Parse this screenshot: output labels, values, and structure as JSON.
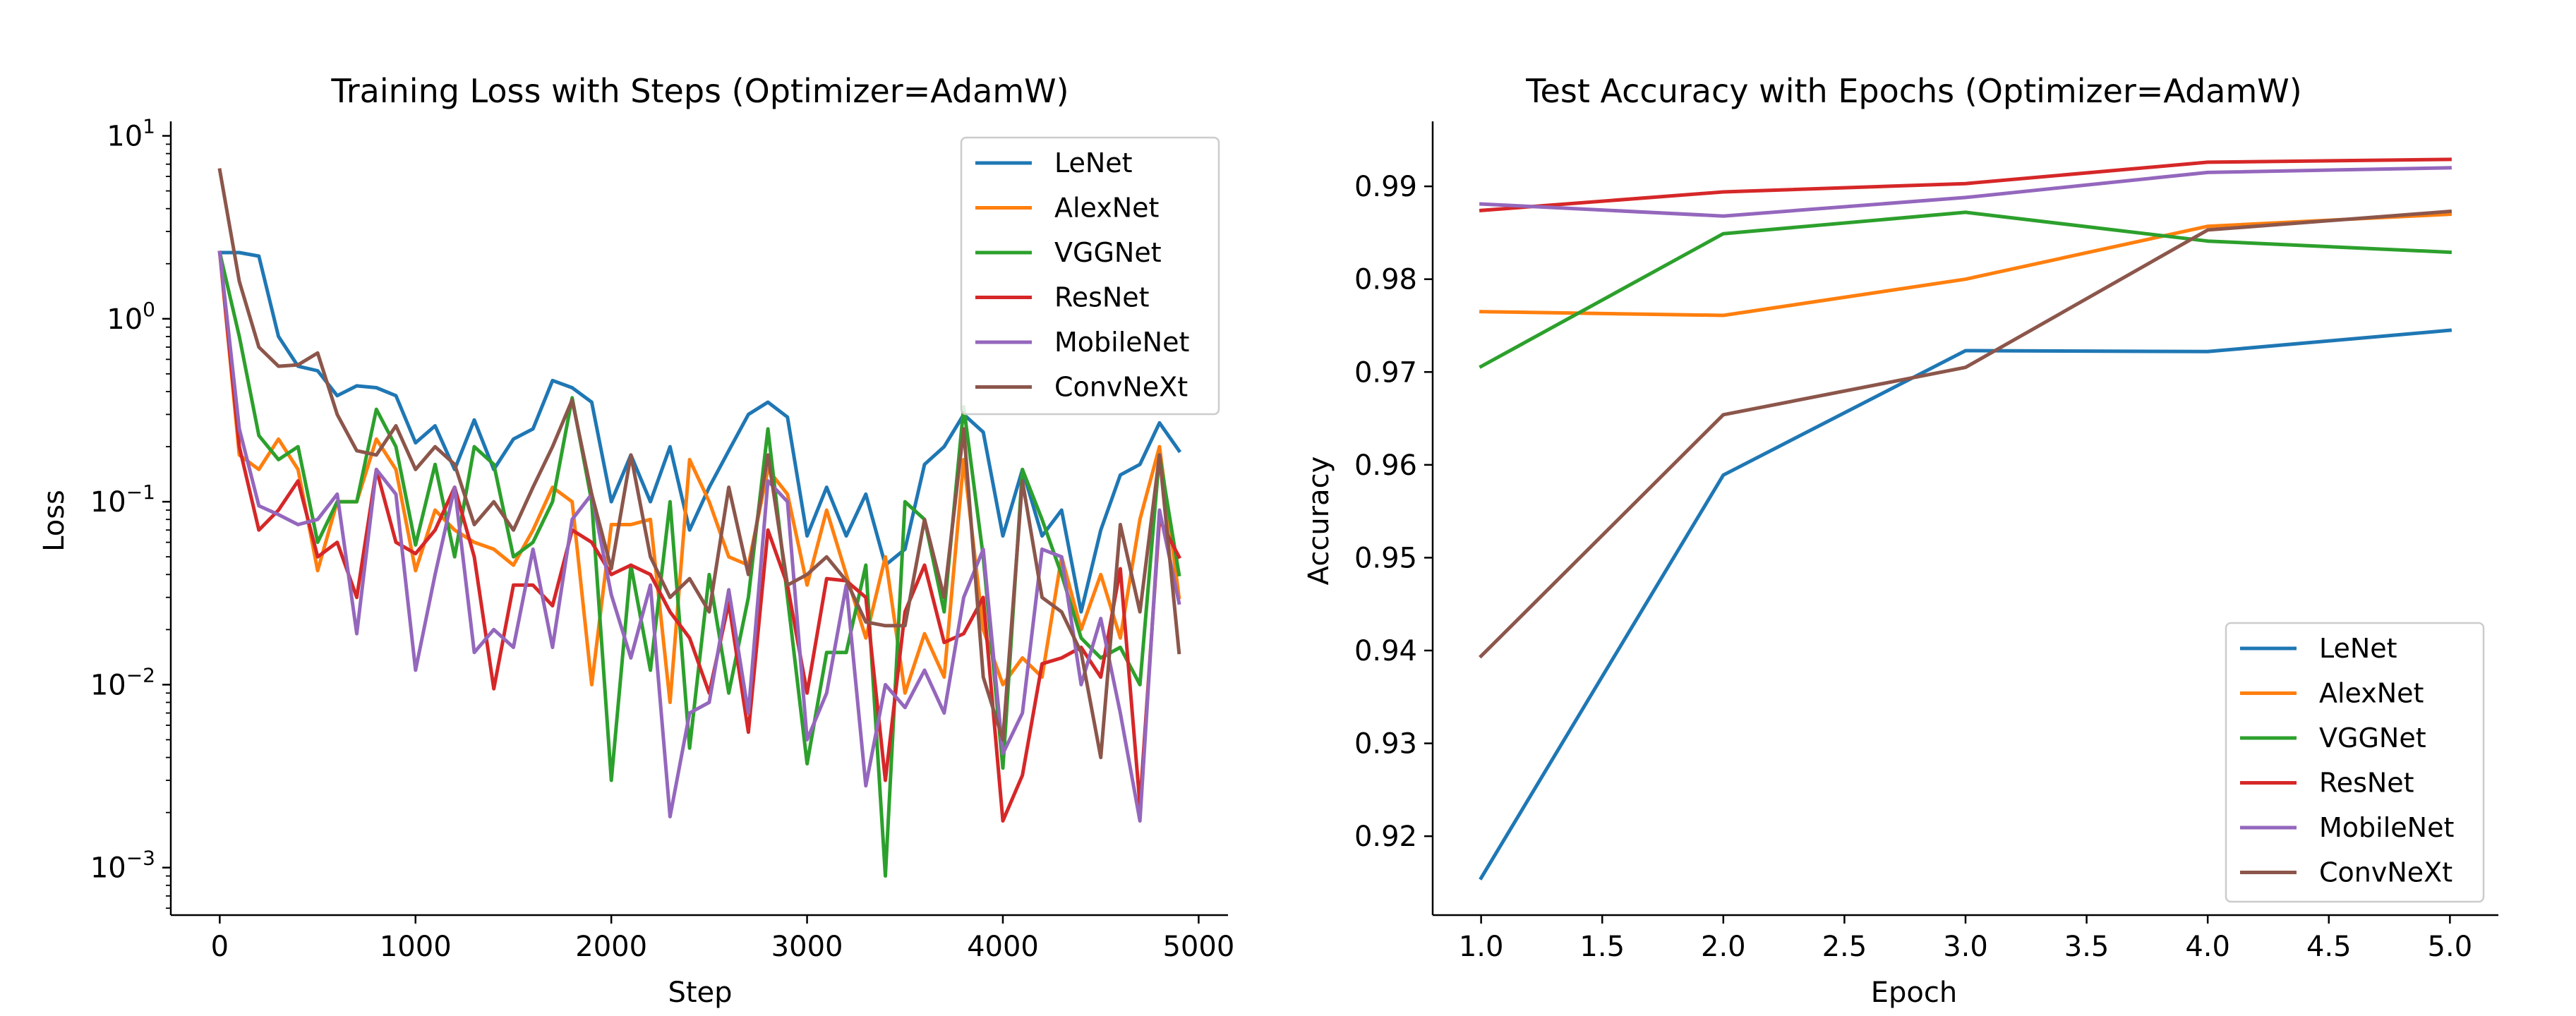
{
  "chart_data": [
    {
      "type": "line",
      "title": "Training Loss with Steps (Optimizer=AdamW)",
      "xlabel": "Step",
      "ylabel": "Loss",
      "yscale": "log",
      "xlim": [
        -250,
        5150
      ],
      "ylim": [
        0.00055,
        12
      ],
      "xticks": [
        0,
        1000,
        2000,
        3000,
        4000,
        5000
      ],
      "xtick_labels": [
        "0",
        "1000",
        "2000",
        "3000",
        "4000",
        "5000"
      ],
      "ytick_exponents": [
        -3,
        -2,
        -1,
        0,
        1
      ],
      "ytick_base": "10",
      "legend_loc": "upper right",
      "x": [
        0,
        100,
        200,
        300,
        400,
        500,
        600,
        700,
        800,
        900,
        1000,
        1100,
        1200,
        1300,
        1400,
        1500,
        1600,
        1700,
        1800,
        1900,
        2000,
        2100,
        2200,
        2300,
        2400,
        2500,
        2600,
        2700,
        2800,
        2900,
        3000,
        3100,
        3200,
        3300,
        3400,
        3500,
        3600,
        3700,
        3800,
        3900,
        4000,
        4100,
        4200,
        4300,
        4400,
        4500,
        4600,
        4700,
        4800,
        4900
      ],
      "series": [
        {
          "name": "LeNet",
          "color": "#1f77b4",
          "values": [
            2.3,
            2.3,
            2.2,
            0.8,
            0.55,
            0.52,
            0.38,
            0.43,
            0.42,
            0.38,
            0.21,
            0.26,
            0.15,
            0.28,
            0.15,
            0.22,
            0.25,
            0.46,
            0.42,
            0.35,
            0.1,
            0.18,
            0.1,
            0.2,
            0.07,
            0.12,
            0.19,
            0.3,
            0.35,
            0.29,
            0.065,
            0.12,
            0.065,
            0.11,
            0.045,
            0.055,
            0.16,
            0.2,
            0.3,
            0.24,
            0.065,
            0.15,
            0.065,
            0.09,
            0.025,
            0.07,
            0.14,
            0.16,
            0.27,
            0.19
          ]
        },
        {
          "name": "AlexNet",
          "color": "#ff7f0e",
          "values": [
            2.3,
            0.18,
            0.15,
            0.22,
            0.15,
            0.042,
            0.1,
            0.1,
            0.22,
            0.15,
            0.042,
            0.09,
            0.07,
            0.06,
            0.055,
            0.045,
            0.07,
            0.12,
            0.1,
            0.01,
            0.075,
            0.075,
            0.08,
            0.008,
            0.17,
            0.1,
            0.05,
            0.045,
            0.15,
            0.11,
            0.035,
            0.09,
            0.04,
            0.018,
            0.05,
            0.009,
            0.019,
            0.011,
            0.17,
            0.02,
            0.01,
            0.014,
            0.011,
            0.05,
            0.02,
            0.04,
            0.018,
            0.08,
            0.2,
            0.03
          ]
        },
        {
          "name": "VGGNet",
          "color": "#2ca02c",
          "values": [
            2.3,
            0.8,
            0.23,
            0.17,
            0.2,
            0.06,
            0.1,
            0.1,
            0.32,
            0.2,
            0.058,
            0.16,
            0.05,
            0.2,
            0.16,
            0.05,
            0.06,
            0.1,
            0.37,
            0.1,
            0.003,
            0.045,
            0.012,
            0.1,
            0.0045,
            0.04,
            0.009,
            0.03,
            0.25,
            0.03,
            0.0037,
            0.015,
            0.015,
            0.045,
            0.0009,
            0.1,
            0.08,
            0.025,
            0.33,
            0.05,
            0.0035,
            0.15,
            0.08,
            0.04,
            0.018,
            0.014,
            0.016,
            0.01,
            0.18,
            0.04
          ]
        },
        {
          "name": "ResNet",
          "color": "#d62728",
          "values": [
            2.3,
            0.2,
            0.07,
            0.09,
            0.13,
            0.05,
            0.06,
            0.03,
            0.15,
            0.06,
            0.052,
            0.07,
            0.12,
            0.05,
            0.0095,
            0.035,
            0.035,
            0.027,
            0.07,
            0.06,
            0.04,
            0.045,
            0.04,
            0.025,
            0.018,
            0.009,
            0.028,
            0.0055,
            0.07,
            0.035,
            0.009,
            0.038,
            0.037,
            0.03,
            0.003,
            0.025,
            0.045,
            0.017,
            0.019,
            0.03,
            0.0018,
            0.0032,
            0.013,
            0.014,
            0.016,
            0.011,
            0.043,
            0.0022,
            0.08,
            0.05
          ]
        },
        {
          "name": "MobileNet",
          "color": "#9467bd",
          "values": [
            2.3,
            0.25,
            0.095,
            0.085,
            0.075,
            0.08,
            0.11,
            0.019,
            0.15,
            0.11,
            0.012,
            0.04,
            0.12,
            0.015,
            0.02,
            0.016,
            0.055,
            0.016,
            0.08,
            0.11,
            0.031,
            0.014,
            0.035,
            0.0019,
            0.007,
            0.008,
            0.033,
            0.007,
            0.13,
            0.1,
            0.005,
            0.009,
            0.035,
            0.0028,
            0.01,
            0.0075,
            0.012,
            0.007,
            0.03,
            0.055,
            0.0042,
            0.007,
            0.055,
            0.05,
            0.01,
            0.023,
            0.007,
            0.0018,
            0.09,
            0.028
          ]
        },
        {
          "name": "ConvNeXt",
          "color": "#8c564b",
          "values": [
            6.5,
            1.6,
            0.7,
            0.55,
            0.56,
            0.65,
            0.3,
            0.19,
            0.18,
            0.26,
            0.15,
            0.2,
            0.16,
            0.075,
            0.1,
            0.07,
            0.12,
            0.2,
            0.36,
            0.11,
            0.043,
            0.18,
            0.05,
            0.03,
            0.038,
            0.025,
            0.12,
            0.04,
            0.18,
            0.035,
            0.04,
            0.05,
            0.037,
            0.022,
            0.021,
            0.021,
            0.08,
            0.03,
            0.25,
            0.011,
            0.005,
            0.13,
            0.03,
            0.025,
            0.015,
            0.004,
            0.075,
            0.025,
            0.18,
            0.015
          ]
        }
      ]
    },
    {
      "type": "line",
      "title": "Test Accuracy with Epochs (Optimizer=AdamW)",
      "xlabel": "Epoch",
      "ylabel": "Accuracy",
      "xlim": [
        0.8,
        5.2
      ],
      "ylim": [
        0.9115,
        0.997
      ],
      "xticks": [
        1.0,
        1.5,
        2.0,
        2.5,
        3.0,
        3.5,
        4.0,
        4.5,
        5.0
      ],
      "xtick_labels": [
        "1.0",
        "1.5",
        "2.0",
        "2.5",
        "3.0",
        "3.5",
        "4.0",
        "4.5",
        "5.0"
      ],
      "yticks": [
        0.92,
        0.93,
        0.94,
        0.95,
        0.96,
        0.97,
        0.98,
        0.99
      ],
      "ytick_labels": [
        "0.92",
        "0.93",
        "0.94",
        "0.95",
        "0.96",
        "0.97",
        "0.98",
        "0.99"
      ],
      "legend_loc": "lower right",
      "x": [
        1,
        2,
        3,
        4,
        5
      ],
      "series": [
        {
          "name": "LeNet",
          "color": "#1f77b4",
          "values": [
            0.9155,
            0.9589,
            0.9723,
            0.9722,
            0.9745
          ]
        },
        {
          "name": "AlexNet",
          "color": "#ff7f0e",
          "values": [
            0.9765,
            0.9761,
            0.98,
            0.9857,
            0.987
          ]
        },
        {
          "name": "VGGNet",
          "color": "#2ca02c",
          "values": [
            0.9706,
            0.9849,
            0.9872,
            0.9841,
            0.9829
          ]
        },
        {
          "name": "ResNet",
          "color": "#d62728",
          "values": [
            0.9874,
            0.9894,
            0.9903,
            0.9926,
            0.9929
          ]
        },
        {
          "name": "MobileNet",
          "color": "#9467bd",
          "values": [
            0.9881,
            0.9868,
            0.9888,
            0.9915,
            0.992
          ]
        },
        {
          "name": "ConvNeXt",
          "color": "#8c564b",
          "values": [
            0.9394,
            0.9654,
            0.9705,
            0.9853,
            0.9873
          ]
        }
      ]
    }
  ]
}
